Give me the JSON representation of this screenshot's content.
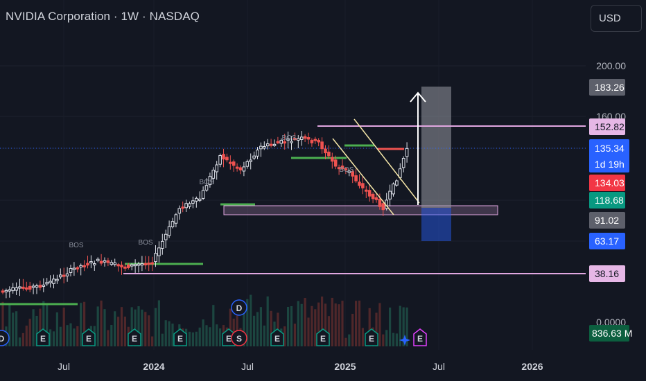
{
  "header": {
    "title": "NVIDIA Corporation · 1W · NASDAQ",
    "currency_label": "USD"
  },
  "colors": {
    "background": "#131722",
    "up": "#26a69a",
    "down": "#ef5350",
    "green_line": "#4caf50",
    "pink_line": "#e1a7e1",
    "pink_tag": "#e6b7e6",
    "blue_tag": "#2962ff",
    "projection_gray": "#9598a1",
    "projection_blue": "#2962ff"
  },
  "chart_data": {
    "type": "candlestick",
    "symbol": "NVIDIA Corporation",
    "interval": "1W",
    "exchange": "NASDAQ",
    "y_axis": {
      "scale": "log",
      "ticks": [
        "200.00",
        "160.00",
        "0.0000"
      ]
    },
    "x_axis": {
      "ticks": [
        {
          "label": "Jul",
          "bold": false
        },
        {
          "label": "2024",
          "bold": true
        },
        {
          "label": "Jul",
          "bold": false
        },
        {
          "label": "2025",
          "bold": true
        },
        {
          "label": "Jul",
          "bold": false
        },
        {
          "label": "2026",
          "bold": true
        }
      ]
    },
    "price_tags": [
      {
        "label": "183.26",
        "value": 183.26,
        "kind": "gray"
      },
      {
        "label": "152.82",
        "value": 152.82,
        "kind": "pink"
      },
      {
        "label": "135.34",
        "value": 135.34,
        "kind": "blue",
        "countdown": "1d 19h"
      },
      {
        "label": "134.03",
        "value": 134.03,
        "kind": "red"
      },
      {
        "label": "118.68",
        "value": 118.68,
        "kind": "green"
      },
      {
        "label": "91.02",
        "value": 91.02,
        "kind": "gray"
      },
      {
        "label": "63.17",
        "value": 63.17,
        "kind": "blue"
      },
      {
        "label": "38.16",
        "value": 38.16,
        "kind": "pink"
      }
    ],
    "volume_tag": {
      "label": "836.63 M"
    },
    "annotations": [
      {
        "text": "BOS",
        "price": 56
      },
      {
        "text": "BOS",
        "price": 62
      },
      {
        "text": "BOS",
        "price": 95
      },
      {
        "text": "BOS",
        "price": 143
      },
      {
        "text": "BOS",
        "price": 126
      }
    ],
    "levels": {
      "supply_line": 152.82,
      "support_line": 38.16,
      "current_price": 135.34,
      "demand_zone": [
        108,
        104
      ],
      "target": 183.26,
      "projection_low": 63.17
    },
    "events": [
      "D",
      "E",
      "E",
      "E",
      "E",
      "E",
      "D",
      "S",
      "E",
      "E",
      "E",
      "E",
      "E"
    ]
  }
}
